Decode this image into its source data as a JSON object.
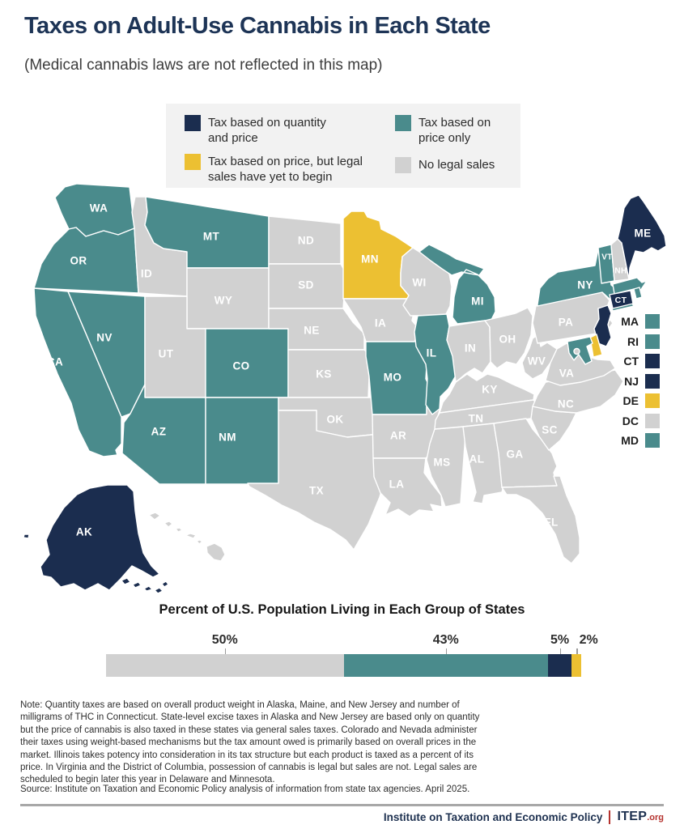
{
  "page": {
    "title": "Taxes on Adult-Use Cannabis in Each State",
    "subtitle": "(Medical cannabis laws are not reflected in this map)"
  },
  "colors": {
    "quantity_price": "#1b2d4f",
    "price_only": "#4a8b8c",
    "price_pending": "#ecc032",
    "none": "#d1d1d1",
    "navy_text": "#1e3150",
    "accent_red": "#b5332f",
    "legend_background": "#f2f2f2"
  },
  "legend": {
    "items": [
      {
        "key": "quantity_price",
        "label": "Tax based on quantity and price"
      },
      {
        "key": "price_only",
        "label": "Tax based on price only"
      },
      {
        "key": "price_pending",
        "label": "Tax based on price, but legal sales have yet to begin"
      },
      {
        "key": "none",
        "label": "No legal sales"
      }
    ]
  },
  "map": {
    "small_state_legend": [
      "MA",
      "RI",
      "CT",
      "NJ",
      "DE",
      "DC",
      "MD"
    ]
  },
  "chart_data": [
    {
      "type": "choropleth_map",
      "title": "Taxes on Adult-Use Cannabis in Each State",
      "categories": [
        {
          "key": "quantity_price",
          "label": "Tax based on quantity and price",
          "color": "#1b2d4f"
        },
        {
          "key": "price_only",
          "label": "Tax based on price only",
          "color": "#4a8b8c"
        },
        {
          "key": "price_pending",
          "label": "Tax based on price, but legal sales have yet to begin",
          "color": "#ecc032"
        },
        {
          "key": "none",
          "label": "No legal sales",
          "color": "#d1d1d1"
        }
      ],
      "state_categories": {
        "WA": "price_only",
        "OR": "price_only",
        "CA": "price_only",
        "NV": "price_only",
        "ID": "none",
        "MT": "price_only",
        "WY": "none",
        "UT": "none",
        "CO": "price_only",
        "AZ": "price_only",
        "NM": "price_only",
        "ND": "none",
        "SD": "none",
        "NE": "none",
        "KS": "none",
        "OK": "none",
        "TX": "none",
        "MN": "price_pending",
        "IA": "none",
        "MO": "price_only",
        "AR": "none",
        "LA": "none",
        "WI": "none",
        "IL": "price_only",
        "MS": "none",
        "MI": "price_only",
        "IN": "none",
        "OH": "none",
        "KY": "none",
        "TN": "none",
        "AL": "none",
        "GA": "none",
        "FL": "none",
        "SC": "none",
        "NC": "none",
        "VA": "none",
        "WV": "none",
        "PA": "none",
        "NY": "price_only",
        "VT": "price_only",
        "NH": "none",
        "ME": "quantity_price",
        "MA": "price_only",
        "RI": "price_only",
        "CT": "quantity_price",
        "NJ": "quantity_price",
        "DE": "price_pending",
        "MD": "price_only",
        "DC": "none",
        "AK": "quantity_price",
        "HI": "none"
      }
    },
    {
      "type": "bar",
      "subtype": "stacked_horizontal",
      "title": "Percent of U.S. Population Living in Each Group of States",
      "unit": "%",
      "xlim": [
        0,
        100
      ],
      "segments": [
        {
          "label": "No legal sales",
          "category": "none",
          "value": 50
        },
        {
          "label": "Tax based on price only",
          "category": "price_only",
          "value": 43
        },
        {
          "label": "Tax based on quantity and price",
          "category": "quantity_price",
          "value": 5
        },
        {
          "label": "Tax based on price, but legal sales have yet to begin",
          "category": "price_pending",
          "value": 2
        }
      ]
    }
  ],
  "note": "Note: Quantity taxes are based on overall product weight in Alaska, Maine, and New Jersey and number of milligrams of THC in Connecticut. State-level excise taxes in Alaska and New Jersey are based only on quantity but the price of cannabis is also taxed in these states via general sales taxes. Colorado and Nevada administer their taxes using weight-based mechanisms but the tax amount owed is primarily based on overall prices in the market. Illinois takes potency into consideration in its tax structure but each product is taxed as a percent of its price. In Virginia and the District of Columbia, possession of cannabis is legal but sales are not. Legal sales are scheduled to begin later this year in Delaware and Minnesota.",
  "source": "Source: Institute on Taxation and Economic Policy analysis of information from state tax agencies. April 2025.",
  "footer": {
    "org": "Institute on Taxation and Economic Policy",
    "separator": "|",
    "logo_main": "ITEP",
    "logo_suffix": ".org"
  }
}
